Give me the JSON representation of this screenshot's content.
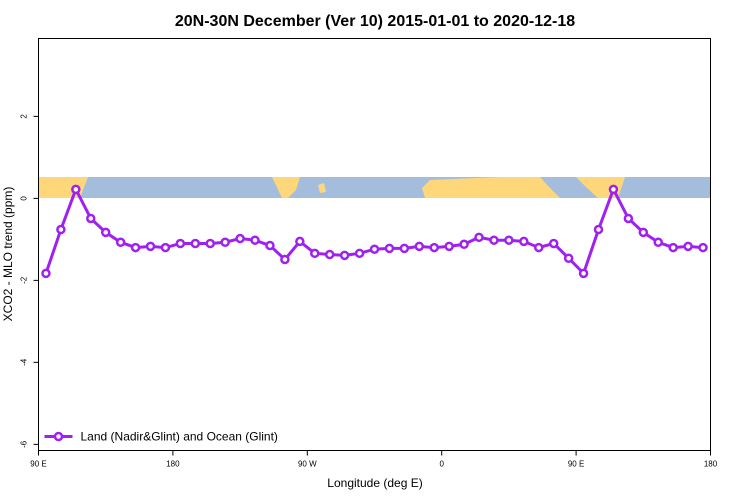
{
  "chart_data": {
    "type": "line",
    "title": "20N-30N December (Ver 10)   2015-01-01 to 2020-12-18",
    "xlabel": "Longitude (deg E)",
    "ylabel": "XCO2 - MLO trend (ppm)",
    "x": [
      95,
      105,
      115,
      125,
      135,
      145,
      155,
      165,
      175,
      185,
      195,
      205,
      215,
      225,
      235,
      245,
      255,
      265,
      275,
      285,
      295,
      305,
      315,
      325,
      335,
      345,
      355,
      365,
      375,
      385,
      395,
      405,
      415,
      425,
      435,
      445,
      455,
      465,
      475,
      485,
      495,
      505,
      515,
      525,
      535
    ],
    "series": [
      {
        "name": "Land (Nadir&Glint) and Ocean (Glint)",
        "color": "#a020f0",
        "values": [
          -1.83,
          -0.76,
          0.22,
          -0.49,
          -0.83,
          -1.07,
          -1.2,
          -1.17,
          -1.2,
          -1.1,
          -1.1,
          -1.1,
          -1.07,
          -0.98,
          -1.02,
          -1.15,
          -1.49,
          -1.05,
          -1.34,
          -1.37,
          -1.39,
          -1.34,
          -1.24,
          -1.22,
          -1.22,
          -1.17,
          -1.2,
          -1.17,
          -1.12,
          -0.95,
          -1.02,
          -1.02,
          -1.05,
          -1.2,
          -1.1,
          -1.46,
          -1.83,
          -0.76,
          0.22,
          -0.49,
          -0.83,
          -1.07,
          -1.2,
          -1.17,
          -1.2
        ]
      }
    ],
    "xlim": [
      90,
      540
    ],
    "xticks": [
      {
        "value": 90,
        "label": "90 E"
      },
      180,
      {
        "value": 270,
        "label": "90 W"
      },
      {
        "value": 360,
        "label": "0"
      },
      {
        "value": 450,
        "label": "90 E"
      },
      {
        "value": 540,
        "label": "180"
      }
    ],
    "ylim": [
      -6.15,
      3.9
    ],
    "yticks": [
      -6,
      -4,
      -2,
      0,
      2
    ],
    "legend": "lower left"
  }
}
